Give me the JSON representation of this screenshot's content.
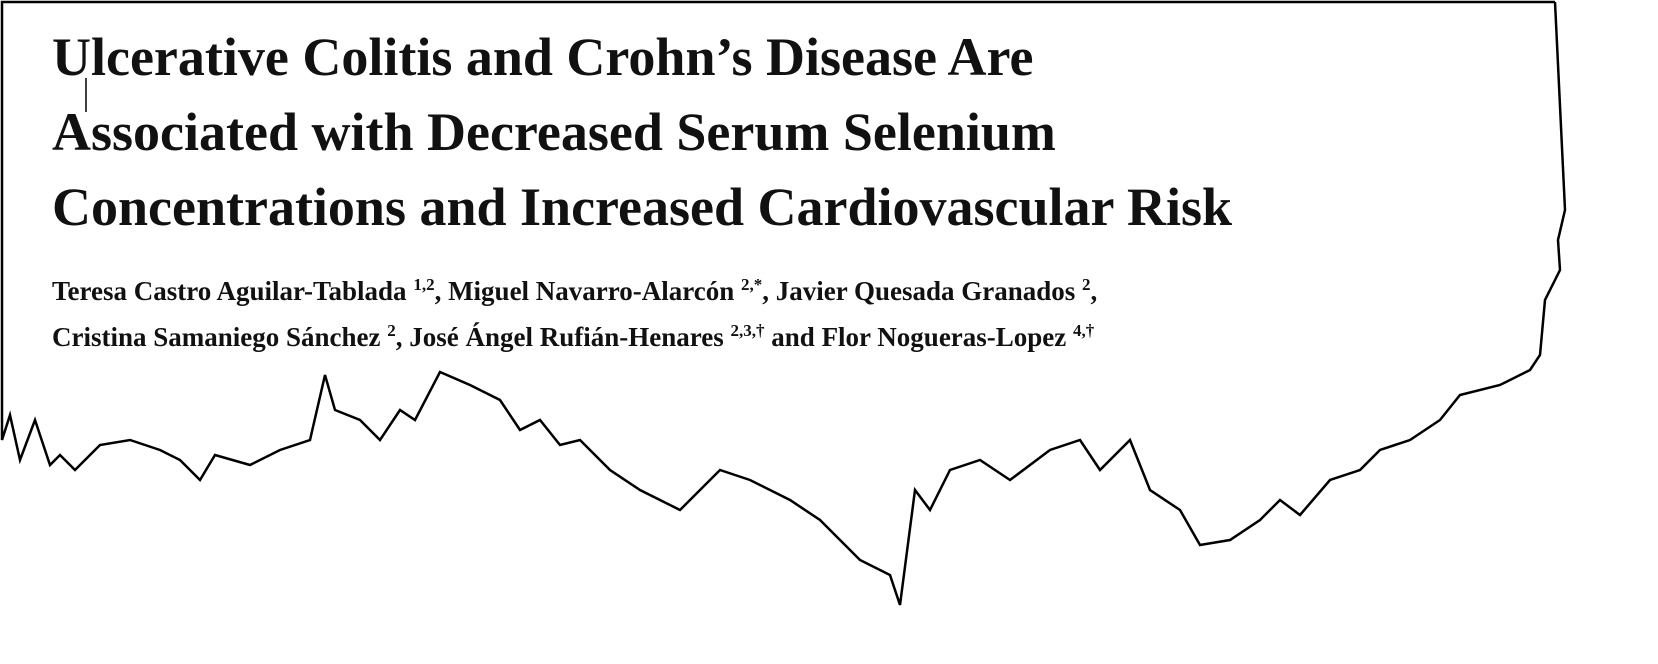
{
  "title_lines": [
    "Ulcerative Colitis and Crohn’s Disease Are",
    "Associated with Decreased Serum Selenium",
    "Concentrations and Increased Cardiovascular Risk"
  ],
  "authors": [
    {
      "name": "Teresa Castro Aguilar-Tablada",
      "affiliations": "1,2",
      "suffix": ","
    },
    {
      "name": "Miguel Navarro-Alarcón",
      "affiliations": "2,*",
      "suffix": ","
    },
    {
      "name": "Javier Quesada Granados",
      "affiliations": "2",
      "suffix": ","
    },
    {
      "name": "Cristina Samaniego Sánchez",
      "affiliations": "2",
      "suffix": ","
    },
    {
      "name": "José Ángel Rufián-Henares",
      "affiliations": "2,3,†"
    },
    {
      "name": "Flor Nogueras-Lopez",
      "affiliations": "4,†"
    }
  ],
  "conjunction": "and"
}
